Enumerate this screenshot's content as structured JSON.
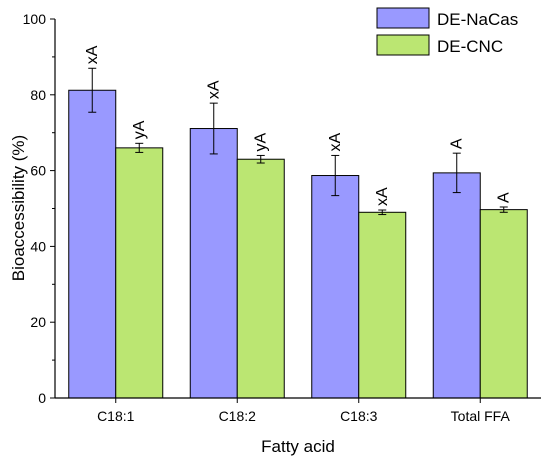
{
  "chart_data": {
    "type": "bar",
    "title": "",
    "xlabel": "Fatty acid",
    "ylabel": "Bioaccessibility (%)",
    "ylim": [
      0,
      100
    ],
    "yticks": [
      0,
      20,
      40,
      60,
      80,
      100
    ],
    "categories": [
      "C18:1",
      "C18:2",
      "C18:3",
      "Total FFA"
    ],
    "series": [
      {
        "name": "DE-NaCas",
        "color": "#9999ff",
        "values": [
          81.2,
          71.1,
          58.7,
          59.4
        ],
        "errors": [
          5.8,
          6.7,
          5.3,
          5.2
        ],
        "labels": [
          "xA",
          "xA",
          "xA",
          "A"
        ]
      },
      {
        "name": "DE-CNC",
        "color": "#bbe672",
        "values": [
          66.0,
          63.0,
          49.0,
          49.7
        ],
        "errors": [
          1.2,
          1.0,
          0.6,
          0.7
        ],
        "labels": [
          "yA",
          "yA",
          "xA",
          "A"
        ]
      }
    ],
    "legend_position": "top-right",
    "grid": false
  }
}
